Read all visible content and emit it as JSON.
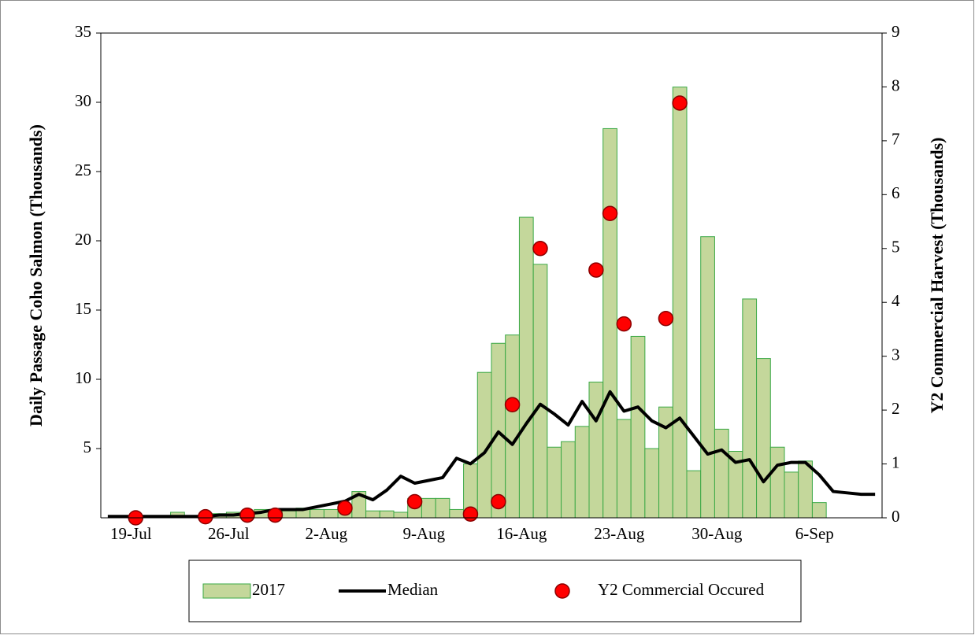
{
  "chart_data": {
    "type": "bar",
    "y_label": "Daily Passage Coho Salmon (Thousands)",
    "y2_label": "Y2 Commercial Harvest (Thousands)",
    "categories": [
      null,
      null,
      "19-Jul",
      null,
      null,
      null,
      null,
      null,
      null,
      "26-Jul",
      null,
      null,
      null,
      null,
      null,
      null,
      "2-Aug",
      null,
      null,
      null,
      null,
      null,
      null,
      "9-Aug",
      null,
      null,
      null,
      null,
      null,
      null,
      "16-Aug",
      null,
      null,
      null,
      null,
      null,
      null,
      "23-Aug",
      null,
      null,
      null,
      null,
      null,
      null,
      "30-Aug",
      null,
      null,
      null,
      null,
      null,
      null,
      "6-Sep",
      null,
      null,
      null,
      null
    ],
    "ylim": [
      0,
      35
    ],
    "yticks": [
      5,
      10,
      15,
      20,
      25,
      30,
      35
    ],
    "y2lim": [
      0,
      9
    ],
    "y2ticks": [
      0,
      1,
      2,
      3,
      4,
      5,
      6,
      7,
      8,
      9
    ],
    "legend": "bottom",
    "series": [
      {
        "name": "2017",
        "type": "bar",
        "color": "#c4d79b",
        "edge_color": "#3aa845",
        "values": [
          null,
          null,
          null,
          null,
          0.1,
          0.4,
          0.1,
          0.2,
          0.3,
          0.4,
          0.4,
          0.6,
          0.6,
          0.5,
          0.7,
          0.6,
          0.6,
          0.8,
          1.9,
          0.5,
          0.5,
          0.4,
          1.4,
          1.4,
          1.4,
          0.6,
          3.9,
          10.5,
          12.6,
          13.2,
          21.7,
          18.3,
          5.1,
          5.5,
          6.6,
          9.8,
          28.1,
          7.1,
          13.1,
          5.0,
          8.0,
          31.1,
          3.4,
          20.3,
          6.4,
          4.8,
          15.8,
          11.5,
          5.1,
          3.3,
          4.1,
          1.1,
          null,
          null,
          null,
          null
        ]
      },
      {
        "name": "Median",
        "type": "line",
        "color": "#000000",
        "values": [
          0.1,
          0.1,
          0.1,
          0.1,
          0.1,
          0.1,
          0.1,
          0.1,
          0.2,
          0.2,
          0.3,
          0.4,
          0.6,
          0.6,
          0.6,
          0.8,
          1.0,
          1.2,
          1.7,
          1.3,
          2.0,
          3.0,
          2.5,
          2.7,
          2.9,
          4.3,
          3.9,
          4.7,
          6.2,
          5.3,
          6.8,
          8.2,
          7.5,
          6.7,
          8.4,
          7.0,
          9.1,
          7.7,
          8.0,
          7.0,
          6.5,
          7.2,
          5.9,
          4.6,
          4.9,
          4.0,
          4.2,
          2.6,
          3.8,
          4.0,
          4.0,
          3.1,
          1.9,
          1.8,
          1.7,
          1.7
        ]
      },
      {
        "name": "Y2 Commercial Occured",
        "type": "scatter",
        "axis": "y2",
        "color": "#ff0000",
        "edge_color": "#8b0000",
        "values": [
          null,
          null,
          0,
          null,
          null,
          null,
          null,
          0.02,
          null,
          null,
          0.05,
          null,
          0.05,
          null,
          null,
          null,
          null,
          0.18,
          null,
          null,
          null,
          null,
          0.3,
          null,
          null,
          null,
          0.07,
          null,
          0.3,
          2.1,
          null,
          5.0,
          null,
          null,
          null,
          4.6,
          5.65,
          3.6,
          null,
          null,
          3.7,
          7.7,
          null,
          null,
          null,
          null,
          null,
          null,
          null,
          null,
          null,
          null,
          null,
          null,
          null,
          null
        ]
      }
    ]
  }
}
